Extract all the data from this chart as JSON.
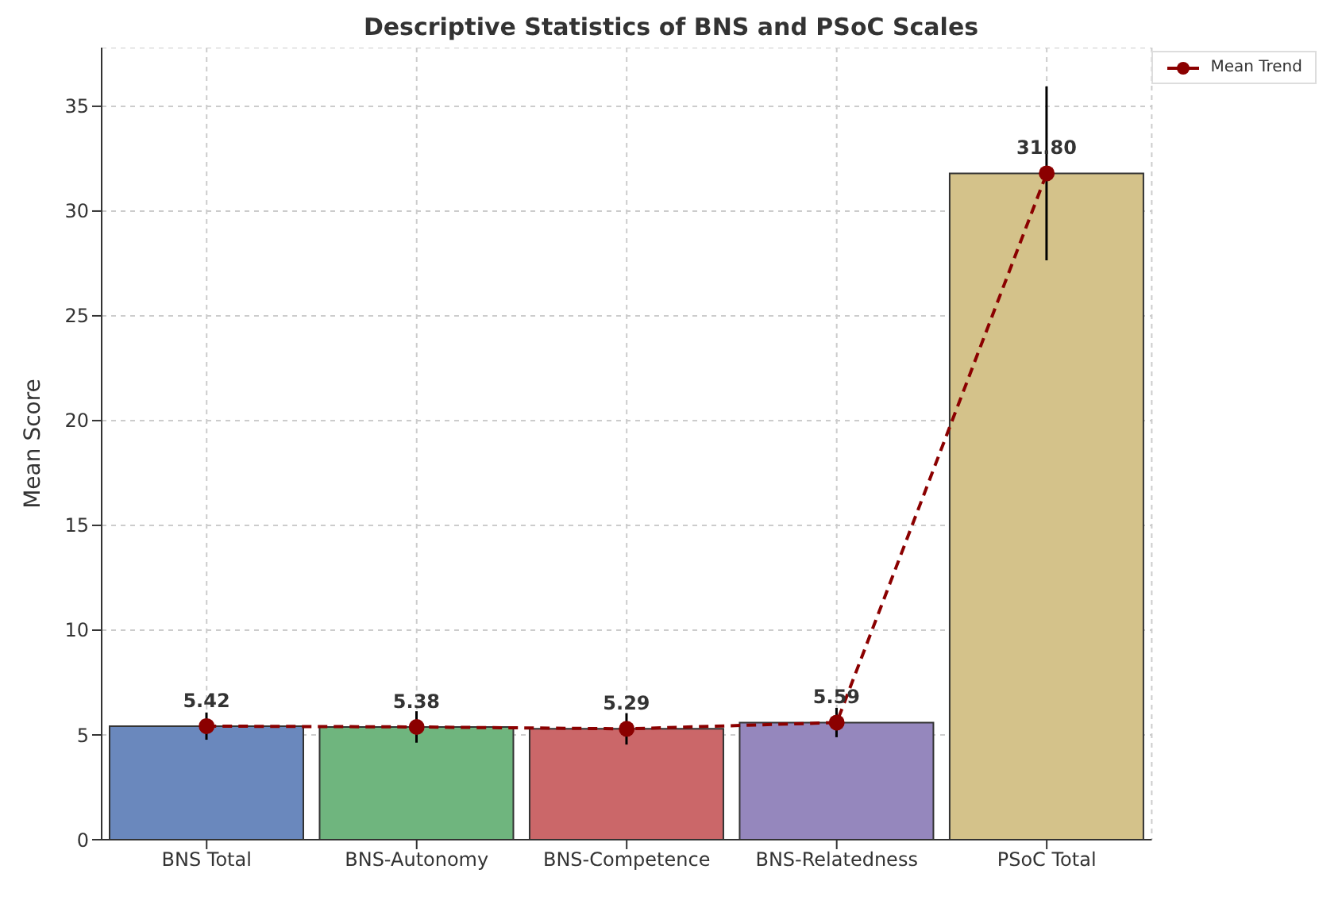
{
  "chart_data": {
    "type": "bar",
    "title": "Descriptive Statistics of BNS and PSoC Scales",
    "ylabel": "Mean Score",
    "categories": [
      "BNS Total",
      "BNS-Autonomy",
      "BNS-Competence",
      "BNS-Relatedness",
      "PSoC Total"
    ],
    "series": [
      {
        "colors": [
          "#6a88bd",
          "#6fb57e",
          "#cb6769",
          "#9587bd",
          "#d4c28a"
        ],
        "values": [
          5.42,
          5.38,
          5.29,
          5.59,
          31.8
        ],
        "errors": [
          0.65,
          0.75,
          0.75,
          0.7,
          4.15
        ],
        "value_labels": [
          "5.42",
          "5.38",
          "5.29",
          "5.59",
          "31.80"
        ]
      },
      {
        "type": "line",
        "name": "Mean Trend",
        "color": "#8b0000",
        "values": [
          5.42,
          5.38,
          5.29,
          5.59,
          31.8
        ],
        "marker": "circle",
        "line_style": "dashed"
      }
    ],
    "ylim": [
      0,
      37.8
    ],
    "yticks": [
      0,
      5,
      10,
      15,
      20,
      25,
      30,
      35
    ],
    "grid": true,
    "legend": "top right"
  }
}
